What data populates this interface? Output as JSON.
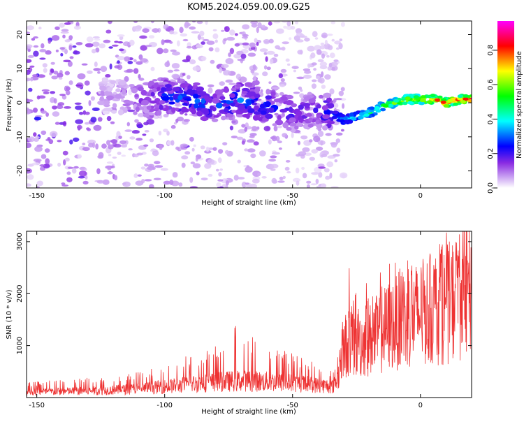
{
  "title": "KOM5.2024.059.00.09.G25",
  "chart_data": [
    {
      "type": "heatmap",
      "xlabel": "Height of straight line (km)",
      "ylabel": "Frequency (Hz)",
      "xlim": [
        -154,
        20
      ],
      "ylim": [
        -25,
        24
      ],
      "xticks": [
        -150,
        -100,
        -50,
        0
      ],
      "yticks": [
        -20,
        -10,
        0,
        10,
        20
      ],
      "colorbar": {
        "label": "Normalized spectral amplitude",
        "range": [
          0,
          0.97
        ],
        "ticks": [
          0.0,
          0.2,
          0.4,
          0.6,
          0.8
        ],
        "colormap": [
          "#ffffff",
          "#d6b8f5",
          "#8a2be2",
          "#0000ff",
          "#00ffff",
          "#00ff00",
          "#ffff00",
          "#ff0000",
          "#ff00ff"
        ]
      },
      "ridge": {
        "x": [
          -120,
          -110,
          -100,
          -90,
          -80,
          -70,
          -60,
          -50,
          -40,
          -35,
          -30,
          -25,
          -20,
          -15,
          -10,
          -5,
          0,
          5,
          10,
          15,
          20
        ],
        "freq": [
          2,
          1,
          2,
          1,
          -1,
          1,
          -1,
          -3,
          -2,
          -3,
          -5,
          -4,
          -3,
          -1,
          0,
          1,
          1,
          1,
          0,
          1,
          1
        ],
        "amplitude": [
          0.08,
          0.15,
          0.25,
          0.3,
          0.25,
          0.3,
          0.25,
          0.2,
          0.18,
          0.3,
          0.35,
          0.4,
          0.45,
          0.5,
          0.6,
          0.65,
          0.7,
          0.75,
          0.8,
          0.75,
          0.8
        ]
      }
    },
    {
      "type": "line",
      "xlabel": "Height of straight line (km)",
      "ylabel": "SNR (10 * v/v)",
      "xlim": [
        -154,
        20
      ],
      "ylim": [
        0,
        3200
      ],
      "xticks": [
        -150,
        -100,
        -50,
        0
      ],
      "yticks": [
        1000,
        2000,
        3000
      ],
      "color": "#ee3333",
      "series": [
        {
          "x": [
            -154,
            -140,
            -130,
            -120,
            -110,
            -100,
            -90,
            -80,
            -70,
            -60,
            -50,
            -40,
            -34,
            -32,
            -30,
            -28,
            -25,
            -20,
            -15,
            -10,
            -5,
            0,
            5,
            10,
            15,
            20
          ],
          "mean": [
            120,
            140,
            150,
            170,
            200,
            250,
            300,
            350,
            380,
            360,
            330,
            280,
            250,
            500,
            1100,
            1300,
            1200,
            1300,
            1500,
            1700,
            1800,
            1900,
            2000,
            2100,
            2300,
            2500
          ],
          "peak": [
            300,
            350,
            380,
            420,
            520,
            600,
            850,
            1000,
            1500,
            1050,
            900,
            700,
            500,
            1000,
            1600,
            2700,
            2000,
            2300,
            2600,
            2600,
            2700,
            2700,
            2800,
            3200,
            2900,
            2900
          ]
        }
      ]
    }
  ]
}
